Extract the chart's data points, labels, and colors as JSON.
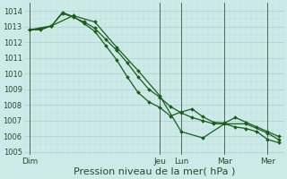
{
  "bg_color": "#cceae8",
  "grid_major_color": "#aacece",
  "grid_minor_color": "#bcdcdc",
  "line_color": "#1a5c1a",
  "xlabel": "Pression niveau de la mer( hPa )",
  "ylim": [
    1004.8,
    1014.5
  ],
  "yticks": [
    1005,
    1006,
    1007,
    1008,
    1009,
    1010,
    1011,
    1012,
    1013,
    1014
  ],
  "xlim": [
    0,
    48
  ],
  "day_labels": [
    "Dim",
    "Jeu",
    "Lun",
    "Mar",
    "Mer"
  ],
  "day_positions": [
    1,
    25,
    29,
    37,
    45
  ],
  "vline_positions": [
    1,
    25,
    29,
    37,
    45
  ],
  "series1_x": [
    1,
    3,
    5,
    7,
    9,
    11,
    13,
    15,
    17,
    19,
    21,
    23,
    25,
    27,
    29,
    31,
    33,
    35,
    37,
    39,
    41,
    43,
    45,
    47
  ],
  "series1_y": [
    1012.8,
    1012.8,
    1013.05,
    1013.85,
    1013.6,
    1013.3,
    1012.9,
    1012.2,
    1011.5,
    1010.7,
    1009.8,
    1009.0,
    1008.5,
    1007.9,
    1007.5,
    1007.2,
    1007.0,
    1006.8,
    1006.8,
    1006.6,
    1006.5,
    1006.3,
    1005.8,
    1005.6
  ],
  "series2_x": [
    1,
    3,
    5,
    7,
    9,
    11,
    13,
    15,
    17,
    19,
    21,
    23,
    25,
    27,
    29,
    31,
    33,
    35,
    37,
    39,
    41,
    43,
    45,
    47
  ],
  "series2_y": [
    1012.8,
    1012.85,
    1013.05,
    1013.9,
    1013.65,
    1013.2,
    1012.7,
    1011.8,
    1010.9,
    1009.8,
    1008.8,
    1008.2,
    1007.85,
    1007.3,
    1007.55,
    1007.75,
    1007.25,
    1006.9,
    1006.85,
    1007.2,
    1006.9,
    1006.6,
    1006.3,
    1006.0
  ],
  "series3_x": [
    1,
    5,
    9,
    13,
    17,
    21,
    25,
    29,
    33,
    37,
    41,
    45,
    47
  ],
  "series3_y": [
    1012.8,
    1013.05,
    1013.7,
    1013.3,
    1011.7,
    1010.2,
    1008.6,
    1006.3,
    1005.9,
    1006.8,
    1006.8,
    1006.2,
    1005.8
  ],
  "title_fontsize": 7,
  "xlabel_fontsize": 8,
  "ytick_fontsize": 6,
  "xtick_fontsize": 6.5
}
